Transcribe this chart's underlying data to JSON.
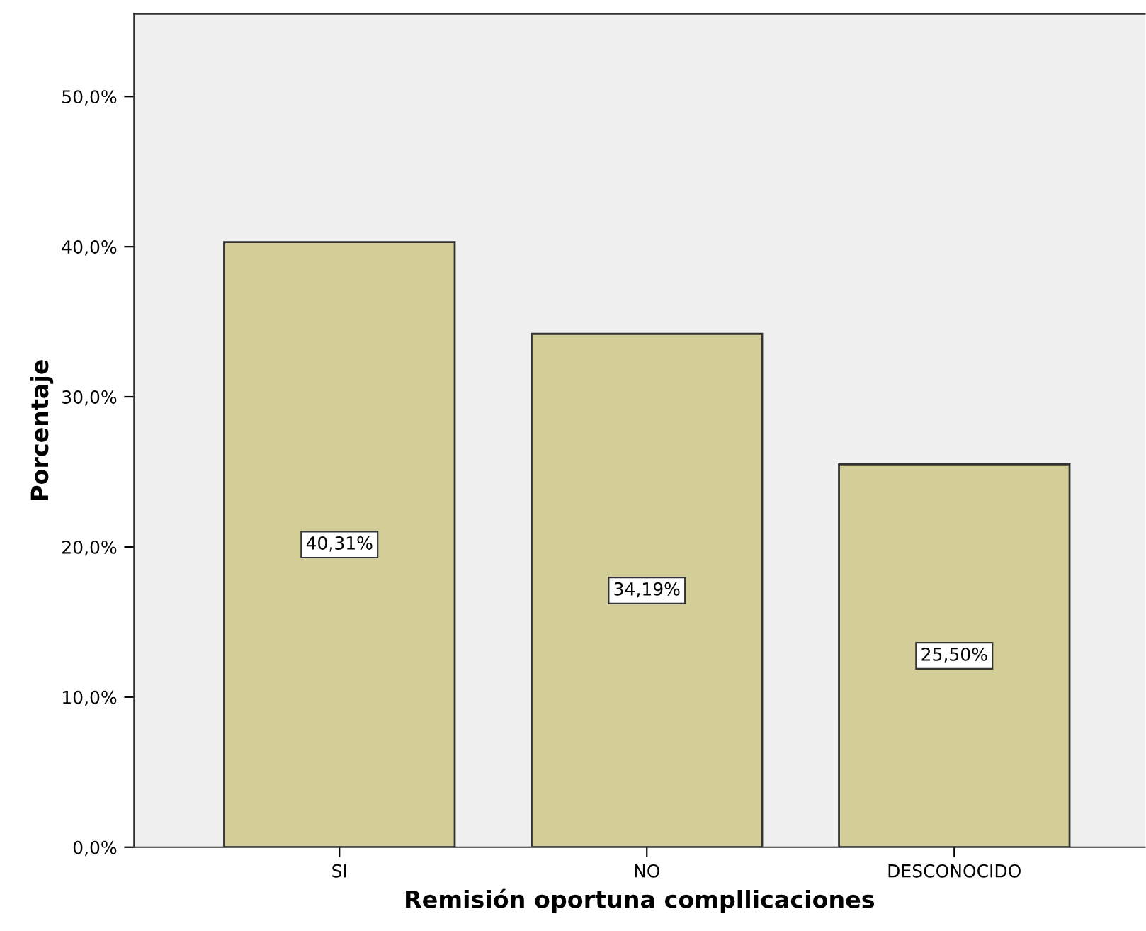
{
  "chart_data": {
    "type": "bar",
    "categories": [
      "SI",
      "NO",
      "DESCONOCIDO"
    ],
    "values": [
      40.31,
      34.19,
      25.5
    ],
    "value_labels": [
      "40,31%",
      "34,19%",
      "25,50%"
    ],
    "color": "#d3ce97",
    "xlabel": "Remisión oportuna compllicaciones",
    "ylabel": "Porcentaje",
    "ylim": [
      0,
      55.5
    ],
    "yticks": [
      {
        "value": 0,
        "label": "0,0%"
      },
      {
        "value": 10,
        "label": "10,0%"
      },
      {
        "value": 20,
        "label": "20,0%"
      },
      {
        "value": 30,
        "label": "30,0%"
      },
      {
        "value": 40,
        "label": "40,0%"
      },
      {
        "value": 50,
        "label": "50,0%"
      }
    ],
    "grid": false,
    "legend": false
  }
}
